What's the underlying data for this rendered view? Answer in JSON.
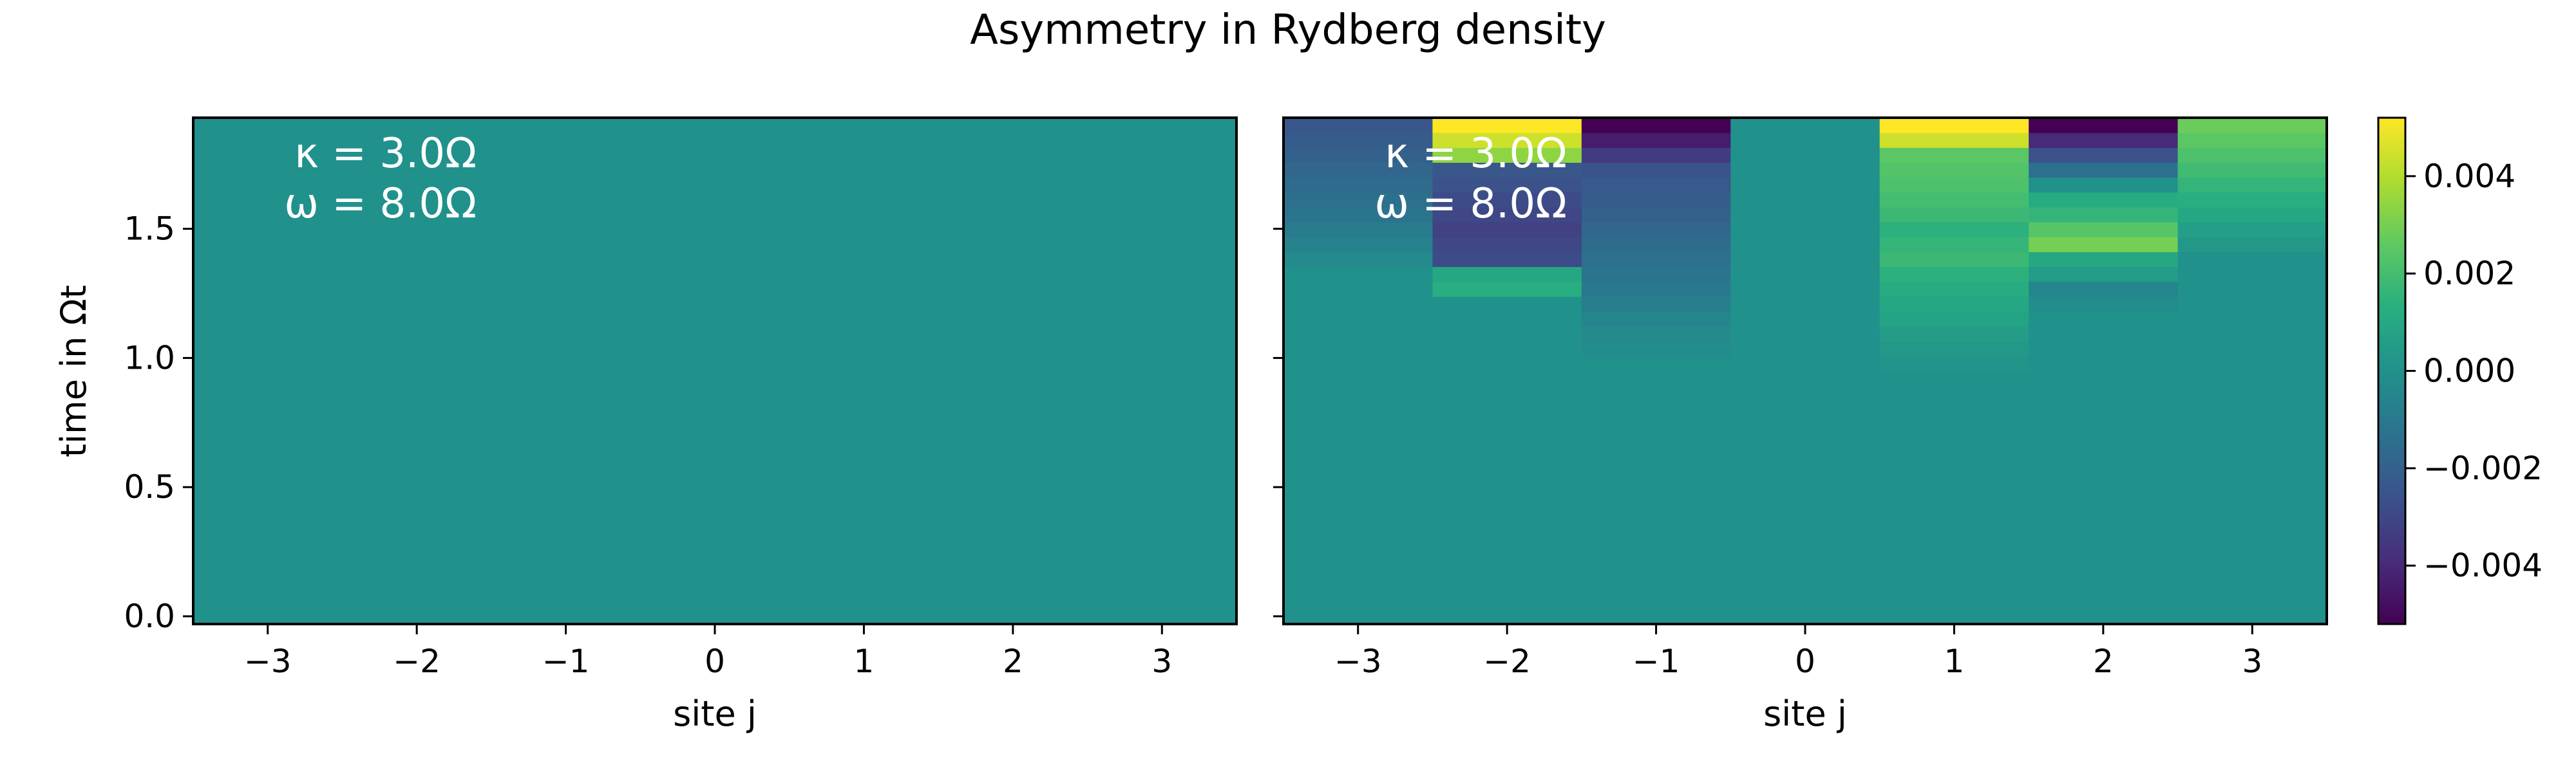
{
  "chart_data": [
    {
      "type": "heatmap",
      "title": "Asymmetry in Rydberg density",
      "xlabel": "site j",
      "ylabel": "time in Ωt",
      "x_categories": [
        -3,
        -2,
        -1,
        0,
        1,
        2,
        3
      ],
      "x_tick_labels": [
        "−3",
        "−2",
        "−1",
        "0",
        "1",
        "2",
        "3"
      ],
      "ylim": [
        -0.03,
        1.93
      ],
      "y_tick_values": [
        0.0,
        0.5,
        1.0,
        1.5
      ],
      "y_tick_labels": [
        "0.0",
        "0.5",
        "1.0",
        "1.5"
      ],
      "time_rows": 34,
      "colormap": "viridis",
      "clim": [
        -0.0052,
        0.0052
      ],
      "annotations": [
        "κ = 3.0Ω",
        "ω = 8.0Ω"
      ],
      "columns": [
        {
          "site": -3,
          "values": [
            0.0,
            0.0,
            0.0,
            0.0,
            0.0,
            0.0,
            0.0,
            0.0,
            0.0,
            0.0,
            0.0,
            0.0,
            0.0,
            0.0,
            0.0,
            0.0,
            0.0,
            0.0,
            0.0,
            0.0,
            0.0,
            0.0,
            0.0,
            0.0,
            0.0,
            0.0,
            0.0,
            0.0,
            0.0,
            0.0,
            0.0,
            0.0,
            0.0,
            0.0
          ]
        },
        {
          "site": -2,
          "values": [
            0.0,
            0.0,
            0.0,
            0.0,
            0.0,
            0.0,
            0.0,
            0.0,
            0.0,
            0.0,
            0.0,
            0.0,
            0.0,
            0.0,
            0.0,
            0.0,
            0.0,
            0.0,
            0.0,
            0.0,
            0.0,
            0.0,
            0.0,
            0.0,
            0.0,
            0.0,
            0.0,
            0.0,
            0.0,
            0.0,
            0.0,
            0.0,
            0.0,
            0.0
          ]
        },
        {
          "site": -1,
          "values": [
            0.0,
            0.0,
            0.0,
            0.0,
            0.0,
            0.0,
            0.0,
            0.0,
            0.0,
            0.0,
            0.0,
            0.0,
            0.0,
            0.0,
            0.0,
            0.0,
            0.0,
            0.0,
            0.0,
            0.0,
            0.0,
            0.0,
            0.0,
            0.0,
            0.0,
            0.0,
            0.0,
            0.0,
            0.0,
            0.0,
            0.0,
            0.0,
            0.0,
            0.0
          ]
        },
        {
          "site": 0,
          "values": [
            0.0,
            0.0,
            0.0,
            0.0,
            0.0,
            0.0,
            0.0,
            0.0,
            0.0,
            0.0,
            0.0,
            0.0,
            0.0,
            0.0,
            0.0,
            0.0,
            0.0,
            0.0,
            0.0,
            0.0,
            0.0,
            0.0,
            0.0,
            0.0,
            0.0,
            0.0,
            0.0,
            0.0,
            0.0,
            0.0,
            0.0,
            0.0,
            0.0,
            0.0
          ]
        },
        {
          "site": 1,
          "values": [
            0.0,
            0.0,
            0.0,
            0.0,
            0.0,
            0.0,
            0.0,
            0.0,
            0.0,
            0.0,
            0.0,
            0.0,
            0.0,
            0.0,
            0.0,
            0.0,
            0.0,
            0.0,
            0.0,
            0.0,
            0.0,
            0.0,
            0.0,
            0.0,
            0.0,
            0.0,
            0.0,
            0.0,
            0.0,
            0.0,
            0.0,
            0.0,
            0.0,
            0.0
          ]
        },
        {
          "site": 2,
          "values": [
            0.0,
            0.0,
            0.0,
            0.0,
            0.0,
            0.0,
            0.0,
            0.0,
            0.0,
            0.0,
            0.0,
            0.0,
            0.0,
            0.0,
            0.0,
            0.0,
            0.0,
            0.0,
            0.0,
            0.0,
            0.0,
            0.0,
            0.0,
            0.0,
            0.0,
            0.0,
            0.0,
            0.0,
            0.0,
            0.0,
            0.0,
            0.0,
            0.0,
            0.0
          ]
        },
        {
          "site": 3,
          "values": [
            0.0,
            0.0,
            0.0,
            0.0,
            0.0,
            0.0,
            0.0,
            0.0,
            0.0,
            0.0,
            0.0,
            0.0,
            0.0,
            0.0,
            0.0,
            0.0,
            0.0,
            0.0,
            0.0,
            0.0,
            0.0,
            0.0,
            0.0,
            0.0,
            0.0,
            0.0,
            0.0,
            0.0,
            0.0,
            0.0,
            0.0,
            0.0,
            0.0,
            0.0
          ]
        }
      ]
    },
    {
      "type": "heatmap",
      "title": "",
      "xlabel": "site j",
      "ylabel": "",
      "x_categories": [
        -3,
        -2,
        -1,
        0,
        1,
        2,
        3
      ],
      "x_tick_labels": [
        "−3",
        "−2",
        "−1",
        "0",
        "1",
        "2",
        "3"
      ],
      "ylim": [
        -0.03,
        1.93
      ],
      "y_tick_values": [
        0.0,
        0.5,
        1.0,
        1.5
      ],
      "y_tick_labels": [],
      "time_rows": 34,
      "colormap": "viridis",
      "clim": [
        -0.0052,
        0.0052
      ],
      "annotations": [
        "κ = 3.0Ω",
        "ω = 8.0Ω"
      ],
      "columns": [
        {
          "site": -3,
          "values": [
            0.0,
            0.0,
            0.0,
            0.0,
            0.0,
            0.0,
            0.0,
            0.0,
            0.0,
            0.0,
            0.0,
            0.0,
            0.0,
            0.0,
            0.0,
            0.0,
            0.0,
            0.0,
            0.0,
            0.0,
            0.0,
            0.0,
            0.0,
            0.0,
            -0.0003,
            -0.0006,
            -0.0009,
            -0.0012,
            -0.0014,
            -0.0016,
            -0.0018,
            -0.002,
            -0.0022,
            -0.0024
          ]
        },
        {
          "site": -2,
          "values": [
            0.0,
            0.0,
            0.0,
            0.0,
            0.0,
            0.0,
            0.0,
            0.0,
            0.0,
            0.0,
            0.0,
            0.0,
            0.0,
            0.0,
            0.0,
            0.0,
            0.0,
            0.0,
            0.0,
            0.0,
            0.0,
            0.0,
            0.0013,
            0.001,
            -0.0028,
            -0.003,
            -0.0032,
            -0.003,
            -0.0028,
            -0.0026,
            -0.0024,
            0.0034,
            0.0044,
            0.0052
          ]
        },
        {
          "site": -1,
          "values": [
            0.0,
            0.0,
            0.0,
            0.0,
            0.0,
            0.0,
            0.0,
            0.0,
            0.0,
            0.0,
            0.0,
            0.0,
            0.0,
            0.0,
            0.0,
            0.0,
            0.0,
            0.0,
            -0.0002,
            -0.0003,
            -0.0005,
            -0.0008,
            -0.001,
            -0.0012,
            -0.0014,
            -0.0016,
            -0.0018,
            -0.002,
            -0.0022,
            -0.0023,
            -0.0025,
            -0.0034,
            -0.0044,
            -0.0052
          ]
        },
        {
          "site": 0,
          "values": [
            0.0,
            0.0,
            0.0,
            0.0,
            0.0,
            0.0,
            0.0,
            0.0,
            0.0,
            0.0,
            0.0,
            0.0,
            0.0,
            0.0,
            0.0,
            0.0,
            0.0,
            0.0,
            0.0,
            0.0,
            0.0,
            0.0,
            0.0,
            0.0,
            0.0,
            0.0,
            0.0,
            0.0,
            0.0,
            0.0,
            0.0,
            0.0,
            0.0,
            0.0
          ]
        },
        {
          "site": 1,
          "values": [
            0.0,
            0.0,
            0.0,
            0.0,
            0.0,
            0.0,
            0.0,
            0.0,
            0.0,
            0.0,
            0.0,
            0.0,
            0.0,
            0.0,
            0.0,
            0.0,
            0.0,
            0.0002,
            0.0003,
            0.0005,
            0.0008,
            0.001,
            0.0012,
            0.0014,
            0.0018,
            0.0016,
            0.0014,
            0.0018,
            0.002,
            0.0022,
            0.0023,
            0.0025,
            0.0044,
            0.0052
          ]
        },
        {
          "site": 2,
          "values": [
            0.0,
            0.0,
            0.0,
            0.0,
            0.0,
            0.0,
            0.0,
            0.0,
            0.0,
            0.0,
            0.0,
            0.0,
            0.0,
            0.0,
            0.0,
            0.0,
            0.0,
            0.0,
            0.0,
            0.0,
            0.0,
            -0.0002,
            -0.0005,
            0.0005,
            0.001,
            0.003,
            0.0024,
            0.0016,
            0.0012,
            0.0,
            -0.0014,
            -0.0026,
            -0.004,
            -0.0052
          ]
        },
        {
          "site": 3,
          "values": [
            0.0,
            0.0,
            0.0,
            0.0,
            0.0,
            0.0,
            0.0,
            0.0,
            0.0,
            0.0,
            0.0,
            0.0,
            0.0,
            0.0,
            0.0,
            0.0,
            0.0,
            0.0,
            0.0,
            0.0,
            0.0,
            0.0,
            0.0,
            0.0,
            0.0,
            0.0003,
            0.0006,
            0.001,
            0.0013,
            0.0016,
            0.0019,
            0.0022,
            0.0025,
            0.0028
          ]
        }
      ]
    }
  ],
  "colorbar": {
    "clim": [
      -0.0052,
      0.0052
    ],
    "tick_values": [
      0.004,
      0.002,
      0.0,
      -0.002,
      -0.004
    ],
    "tick_labels": [
      "0.004",
      "0.002",
      "0.000",
      "−0.002",
      "−0.004"
    ]
  }
}
